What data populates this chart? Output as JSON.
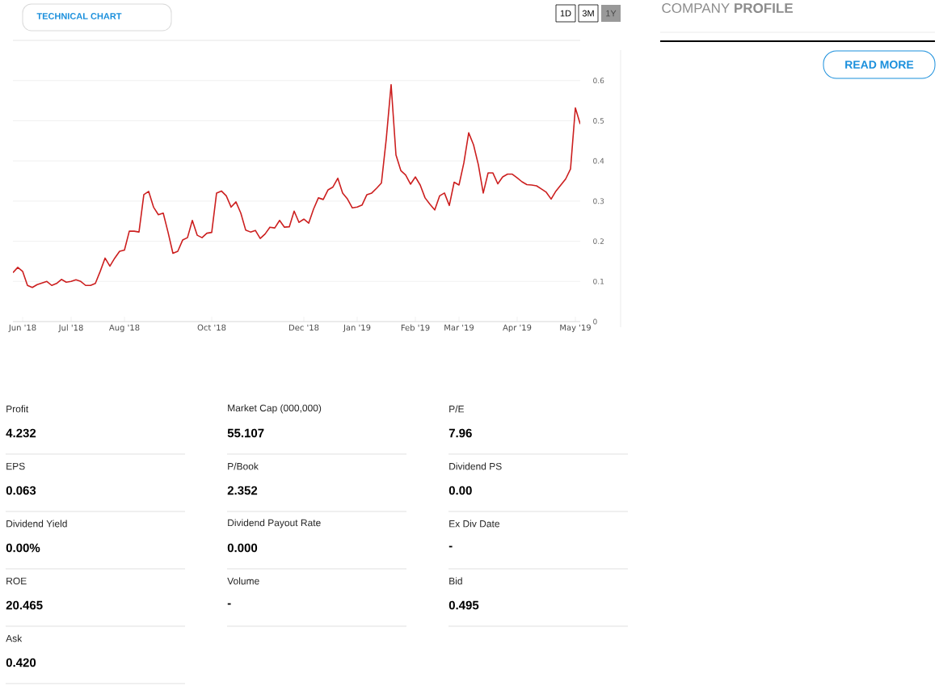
{
  "chart_data": [
    {
      "type": "line",
      "color": "#cc1f1f",
      "categories": [
        null,
        null,
        "Jun '18",
        null,
        null,
        null,
        null,
        null,
        null,
        null,
        null,
        null,
        "Jul '18",
        null,
        null,
        null,
        null,
        null,
        null,
        null,
        null,
        null,
        null,
        "Aug '18",
        null,
        null,
        null,
        null,
        null,
        null,
        null,
        null,
        null,
        null,
        null,
        null,
        null,
        null,
        null,
        null,
        null,
        "Oct '18",
        null,
        null,
        null,
        null,
        null,
        null,
        null,
        null,
        null,
        null,
        null,
        null,
        null,
        null,
        null,
        null,
        null,
        null,
        "Dec '18",
        null,
        null,
        null,
        null,
        null,
        null,
        null,
        null,
        null,
        null,
        "Jan '19",
        null,
        null,
        null,
        null,
        null,
        null,
        null,
        null,
        null,
        null,
        null,
        "Feb '19",
        null,
        null,
        null,
        null,
        null,
        null,
        null,
        null,
        "Mar '19",
        null,
        null,
        null,
        null,
        null,
        null,
        null,
        null,
        null,
        null,
        null,
        "Apr '19",
        null,
        null,
        null,
        null,
        null,
        null,
        null,
        null,
        null,
        null,
        null,
        "May '19",
        null
      ],
      "values": [
        0.122,
        0.135,
        0.125,
        0.09,
        0.085,
        0.092,
        0.096,
        0.1,
        0.09,
        0.095,
        0.105,
        0.098,
        0.1,
        0.104,
        0.1,
        0.09,
        0.09,
        0.095,
        0.125,
        0.158,
        0.138,
        0.158,
        0.175,
        0.178,
        0.225,
        0.225,
        0.223,
        0.316,
        0.324,
        0.285,
        0.266,
        0.27,
        0.222,
        0.17,
        0.175,
        0.203,
        0.209,
        0.252,
        0.215,
        0.209,
        0.22,
        0.222,
        0.32,
        0.325,
        0.313,
        0.285,
        0.298,
        0.27,
        0.228,
        0.223,
        0.227,
        0.207,
        0.218,
        0.235,
        0.233,
        0.252,
        0.235,
        0.236,
        0.275,
        0.247,
        0.255,
        0.245,
        0.28,
        0.308,
        0.304,
        0.328,
        0.335,
        0.357,
        0.32,
        0.305,
        0.283,
        0.285,
        0.29,
        0.316,
        0.32,
        0.332,
        0.345,
        0.455,
        0.59,
        0.415,
        0.376,
        0.365,
        0.342,
        0.36,
        0.34,
        0.308,
        0.292,
        0.278,
        0.313,
        0.32,
        0.289,
        0.347,
        0.34,
        0.395,
        0.47,
        0.44,
        0.39,
        0.32,
        0.37,
        0.37,
        0.343,
        0.36,
        0.367,
        0.367,
        0.358,
        0.348,
        0.341,
        0.34,
        0.338,
        0.33,
        0.322,
        0.305,
        0.325,
        0.34,
        0.355,
        0.38,
        0.532,
        0.492
      ],
      "ylim": [
        0,
        0.7
      ],
      "yticks": [
        0,
        0.1,
        0.2,
        0.3,
        0.4,
        0.5,
        0.6
      ],
      "grid": "y",
      "annotations": [
        "TECHNICAL CHART",
        "1D",
        "3M",
        "1Y"
      ]
    },
    {
      "type": "other",
      "title": "COMPANY **PROFILE**",
      "annotations": [
        "READ MORE",
        "Profit",
        "4.232",
        "Market Cap    (000,000)",
        "55.107",
        "P/E",
        "7.96",
        "EPS",
        "0.063",
        "P/Book",
        "2.352",
        "Dividend PS",
        "0.00",
        "Dividend Yield",
        "0.00%",
        "Dividend Payout Rate",
        "0.000",
        "Ex Div Date",
        "-",
        "ROE",
        "20.465",
        "Volume",
        "-",
        "Bid",
        "0.495",
        "Ask",
        "0.420"
      ]
    }
  ]
}
